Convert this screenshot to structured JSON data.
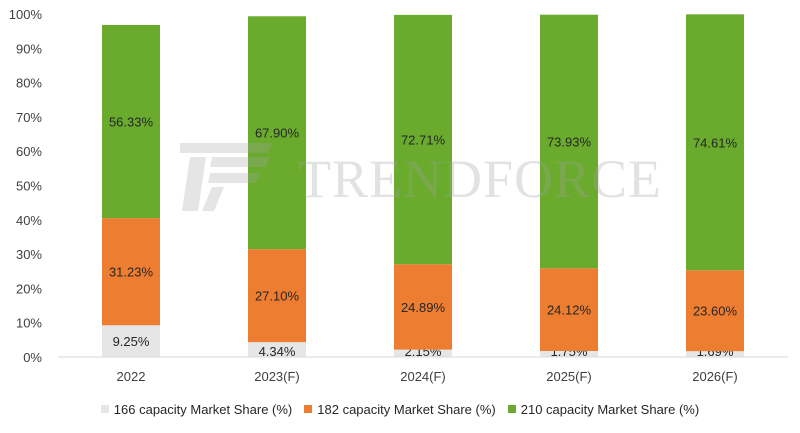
{
  "chart_data": {
    "type": "bar",
    "stacked": true,
    "categories": [
      "2022",
      "2023(F)",
      "2024(F)",
      "2025(F)",
      "2026(F)"
    ],
    "series": [
      {
        "name": "166 capacity Market Share (%)",
        "color": "#e7e6e6",
        "values": [
          9.25,
          4.34,
          2.15,
          1.75,
          1.69
        ],
        "labels": [
          "9.25%",
          "4.34%",
          "2.15%",
          "1.75%",
          "1.69%"
        ]
      },
      {
        "name": "182 capacity Market Share (%)",
        "color": "#ed7d31",
        "values": [
          31.23,
          27.1,
          24.89,
          24.12,
          23.6
        ],
        "labels": [
          "31.23%",
          "27.10%",
          "24.89%",
          "24.12%",
          "23.60%"
        ]
      },
      {
        "name": "210 capacity Market Share (%)",
        "color": "#6aab2e",
        "values": [
          56.33,
          67.9,
          72.71,
          73.93,
          74.61
        ],
        "labels": [
          "56.33%",
          "67.90%",
          "72.71%",
          "73.93%",
          "74.61%"
        ]
      }
    ],
    "ylim": [
      0,
      100
    ],
    "yticks": [
      "0%",
      "10%",
      "20%",
      "30%",
      "40%",
      "50%",
      "60%",
      "70%",
      "80%",
      "90%",
      "100%"
    ],
    "legend_position": "bottom",
    "grid": false
  },
  "watermark": {
    "text": "TRENDFORCE"
  }
}
